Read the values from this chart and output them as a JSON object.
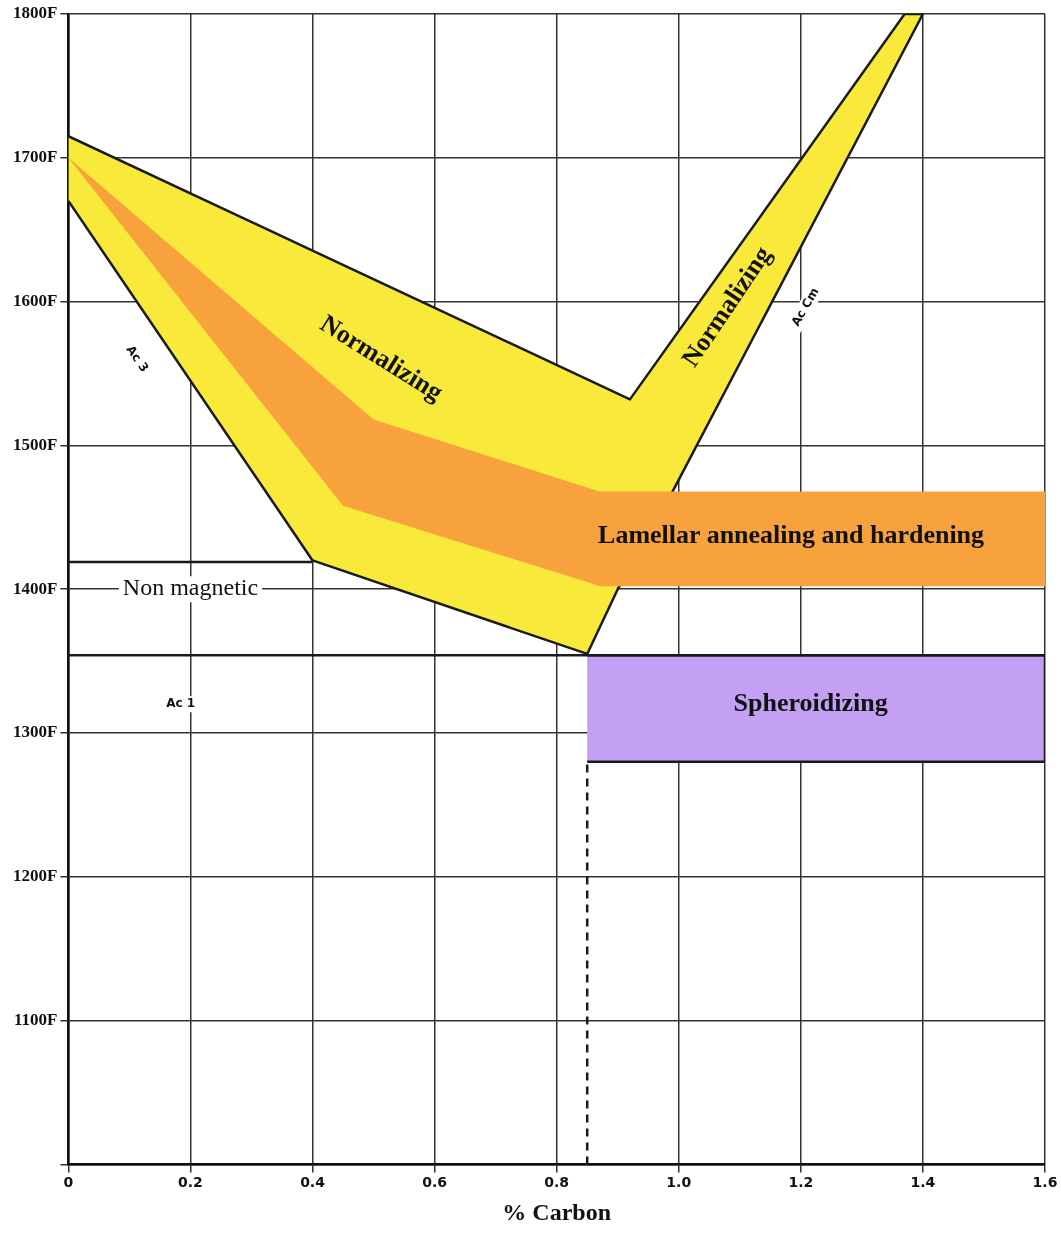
{
  "chart_data": {
    "type": "area",
    "xlabel": "% Carbon",
    "xlim": [
      0,
      1.6
    ],
    "xticks": [
      0,
      0.2,
      0.4,
      0.6,
      0.8,
      {
        "value": 1,
        "label": "1.0"
      },
      1.2,
      1.4,
      1.6
    ],
    "ylim": [
      1000,
      1800
    ],
    "yticks": [
      {
        "value": 1000,
        "label": null
      },
      {
        "value": 1100,
        "label": "1100F"
      },
      {
        "value": 1200,
        "label": "1200F"
      },
      {
        "value": 1300,
        "label": "1300F"
      },
      {
        "value": 1400,
        "label": "1400F"
      },
      {
        "value": 1500,
        "label": "1500F"
      },
      {
        "value": 1600,
        "label": "1600F"
      },
      {
        "value": 1700,
        "label": "1700F"
      },
      {
        "value": 1800,
        "label": "1800F"
      }
    ],
    "grid": true,
    "legend": false,
    "series": [
      {
        "color": "#f9e93a",
        "x": [
          0,
          0.92,
          1.37,
          1.4,
          0.99,
          0.9,
          0.85,
          0.4,
          0
        ],
        "values": [
          1715,
          1532,
          1800,
          1800,
          1468,
          1400,
          1355,
          1420,
          1670
        ]
      },
      {
        "color": "#f7a23c",
        "x": [
          0,
          0.5,
          0.87,
          1.6,
          1.6,
          0.87,
          0.85,
          0.45,
          0
        ],
        "values": [
          1700,
          1518,
          1468,
          1468,
          1402,
          1402,
          1405,
          1458,
          1700
        ]
      },
      {
        "color": "#c4a0f5",
        "x": [
          0.85,
          1.6,
          1.6,
          0.85
        ],
        "values": [
          1354,
          1354,
          1280,
          1280
        ]
      },
      {
        "type": "line",
        "color": "#1a1a1a",
        "x": [
          0,
          1.6
        ],
        "values": [
          1354,
          1354
        ]
      },
      {
        "type": "line",
        "color": "#1a1a1a",
        "x": [
          0,
          0.4
        ],
        "values": [
          1419,
          1419
        ]
      },
      {
        "type": "line",
        "color": "#1a1a1a",
        "line_style": "dashed",
        "x": [
          0.85,
          0.85
        ],
        "values": [
          1000,
          1280
        ]
      }
    ],
    "annotations": [
      "Normalizing",
      "Normalizing",
      "Lamellar annealing and hardening",
      "Non magnetic",
      "Spheroidizing",
      "Ac 3",
      "Ac 1",
      "Ac Cm"
    ]
  }
}
